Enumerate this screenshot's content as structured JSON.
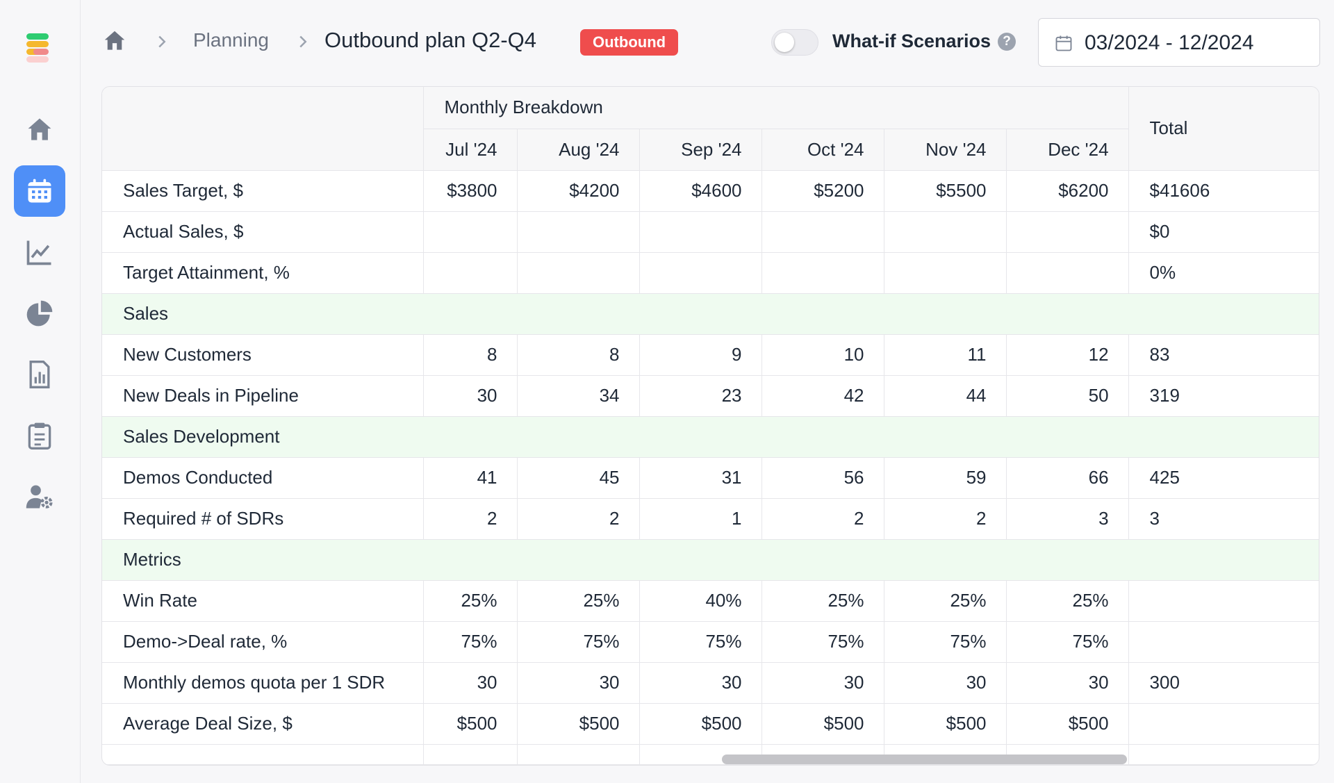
{
  "sidebar": {
    "logo": {
      "colors": [
        "#2ecc71",
        "#f5b82e",
        "#f08a8a",
        "#f5b82e"
      ]
    },
    "items": [
      {
        "icon": "home-icon",
        "active": false
      },
      {
        "icon": "calendar-icon",
        "active": true
      },
      {
        "icon": "line-chart-icon",
        "active": false
      },
      {
        "icon": "pie-chart-icon",
        "active": false
      },
      {
        "icon": "report-icon",
        "active": false
      },
      {
        "icon": "clipboard-icon",
        "active": false
      },
      {
        "icon": "user-settings-icon",
        "active": false
      }
    ],
    "accent": "#4f8ff7"
  },
  "header": {
    "breadcrumb": {
      "home_icon": "home-icon",
      "parent": "Planning",
      "current": "Outbound plan Q2-Q4"
    },
    "badge": "Outbound",
    "badge_color": "#ef4d4d",
    "toggle_on": false,
    "whatif_label": "What-if Scenarios",
    "help": "?",
    "date_range": "03/2024 - 12/2024"
  },
  "table": {
    "group_header": "Monthly Breakdown",
    "total_header": "Total",
    "months": [
      "Jul '24",
      "Aug '24",
      "Sep '24",
      "Oct '24",
      "Nov '24",
      "Dec '24"
    ],
    "rows": [
      {
        "label": "Sales Target, $",
        "values": [
          "$3800",
          "$4200",
          "$4600",
          "$5200",
          "$5500",
          "$6200"
        ],
        "total": "$41606"
      },
      {
        "label": "Actual Sales, $",
        "values": [
          "",
          "",
          "",
          "",
          "",
          ""
        ],
        "total": "$0"
      },
      {
        "label": "Target Attainment, %",
        "values": [
          "",
          "",
          "",
          "",
          "",
          ""
        ],
        "total": "0%"
      },
      {
        "section": "Sales"
      },
      {
        "label": "New Customers",
        "values": [
          "8",
          "8",
          "9",
          "10",
          "11",
          "12"
        ],
        "total": "83"
      },
      {
        "label": "New Deals in Pipeline",
        "values": [
          "30",
          "34",
          "23",
          "42",
          "44",
          "50"
        ],
        "total": "319"
      },
      {
        "section": "Sales Development"
      },
      {
        "label": "Demos Conducted",
        "values": [
          "41",
          "45",
          "31",
          "56",
          "59",
          "66"
        ],
        "total": "425"
      },
      {
        "label": "Required # of SDRs",
        "values": [
          "2",
          "2",
          "1",
          "2",
          "2",
          "3"
        ],
        "total": "3"
      },
      {
        "section": "Metrics"
      },
      {
        "label": "Win Rate",
        "values": [
          "25%",
          "25%",
          "40%",
          "25%",
          "25%",
          "25%"
        ],
        "total": ""
      },
      {
        "label": "Demo->Deal rate, %",
        "values": [
          "75%",
          "75%",
          "75%",
          "75%",
          "75%",
          "75%"
        ],
        "total": ""
      },
      {
        "label": "Monthly demos quota per 1 SDR",
        "values": [
          "30",
          "30",
          "30",
          "30",
          "30",
          "30"
        ],
        "total": "300"
      },
      {
        "label": "Average Deal Size, $",
        "values": [
          "$500",
          "$500",
          "$500",
          "$500",
          "$500",
          "$500"
        ],
        "total": ""
      }
    ]
  }
}
